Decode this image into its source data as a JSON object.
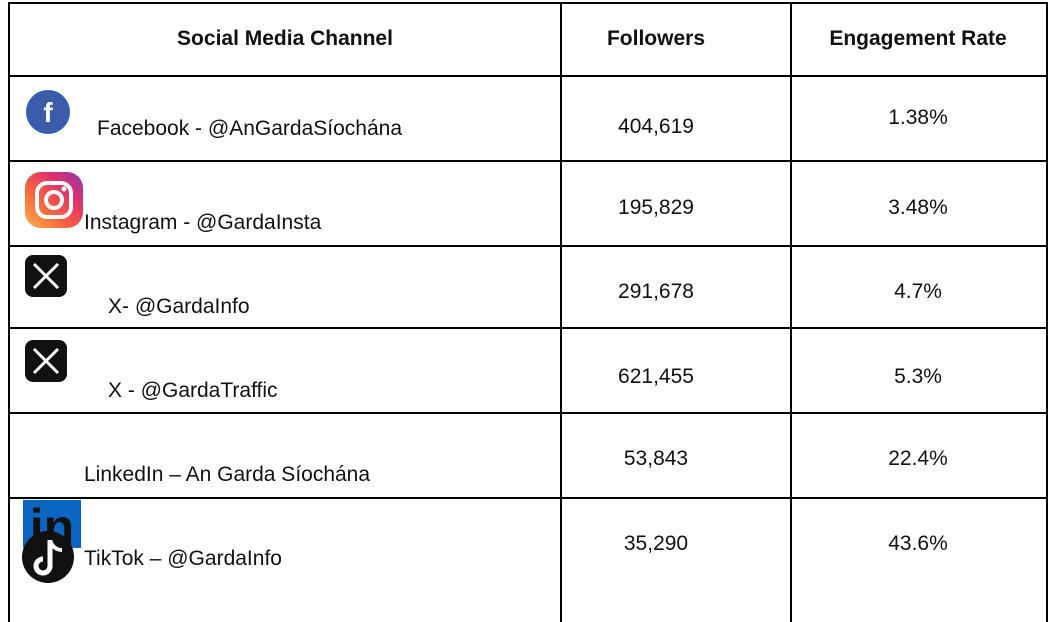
{
  "table": {
    "header": [
      "Social Media Channel",
      "Followers",
      "Engagement Rate"
    ],
    "rows": [
      [
        "Facebook - @AnGardaSíochána",
        "404,619",
        "1.38%"
      ],
      [
        "Instagram - @GardaInsta",
        "195,829",
        "3.48%"
      ],
      [
        "X- @GardaInfo",
        "291,678",
        "4.7%"
      ],
      [
        "X - @GardaTraffic",
        "621,455",
        "5.3%"
      ],
      [
        "LinkedIn – An Garda Síochána",
        "53,843",
        "22.4%"
      ],
      [
        "TikTok – @GardaInfo",
        "35,290",
        "43.6%"
      ]
    ]
  }
}
